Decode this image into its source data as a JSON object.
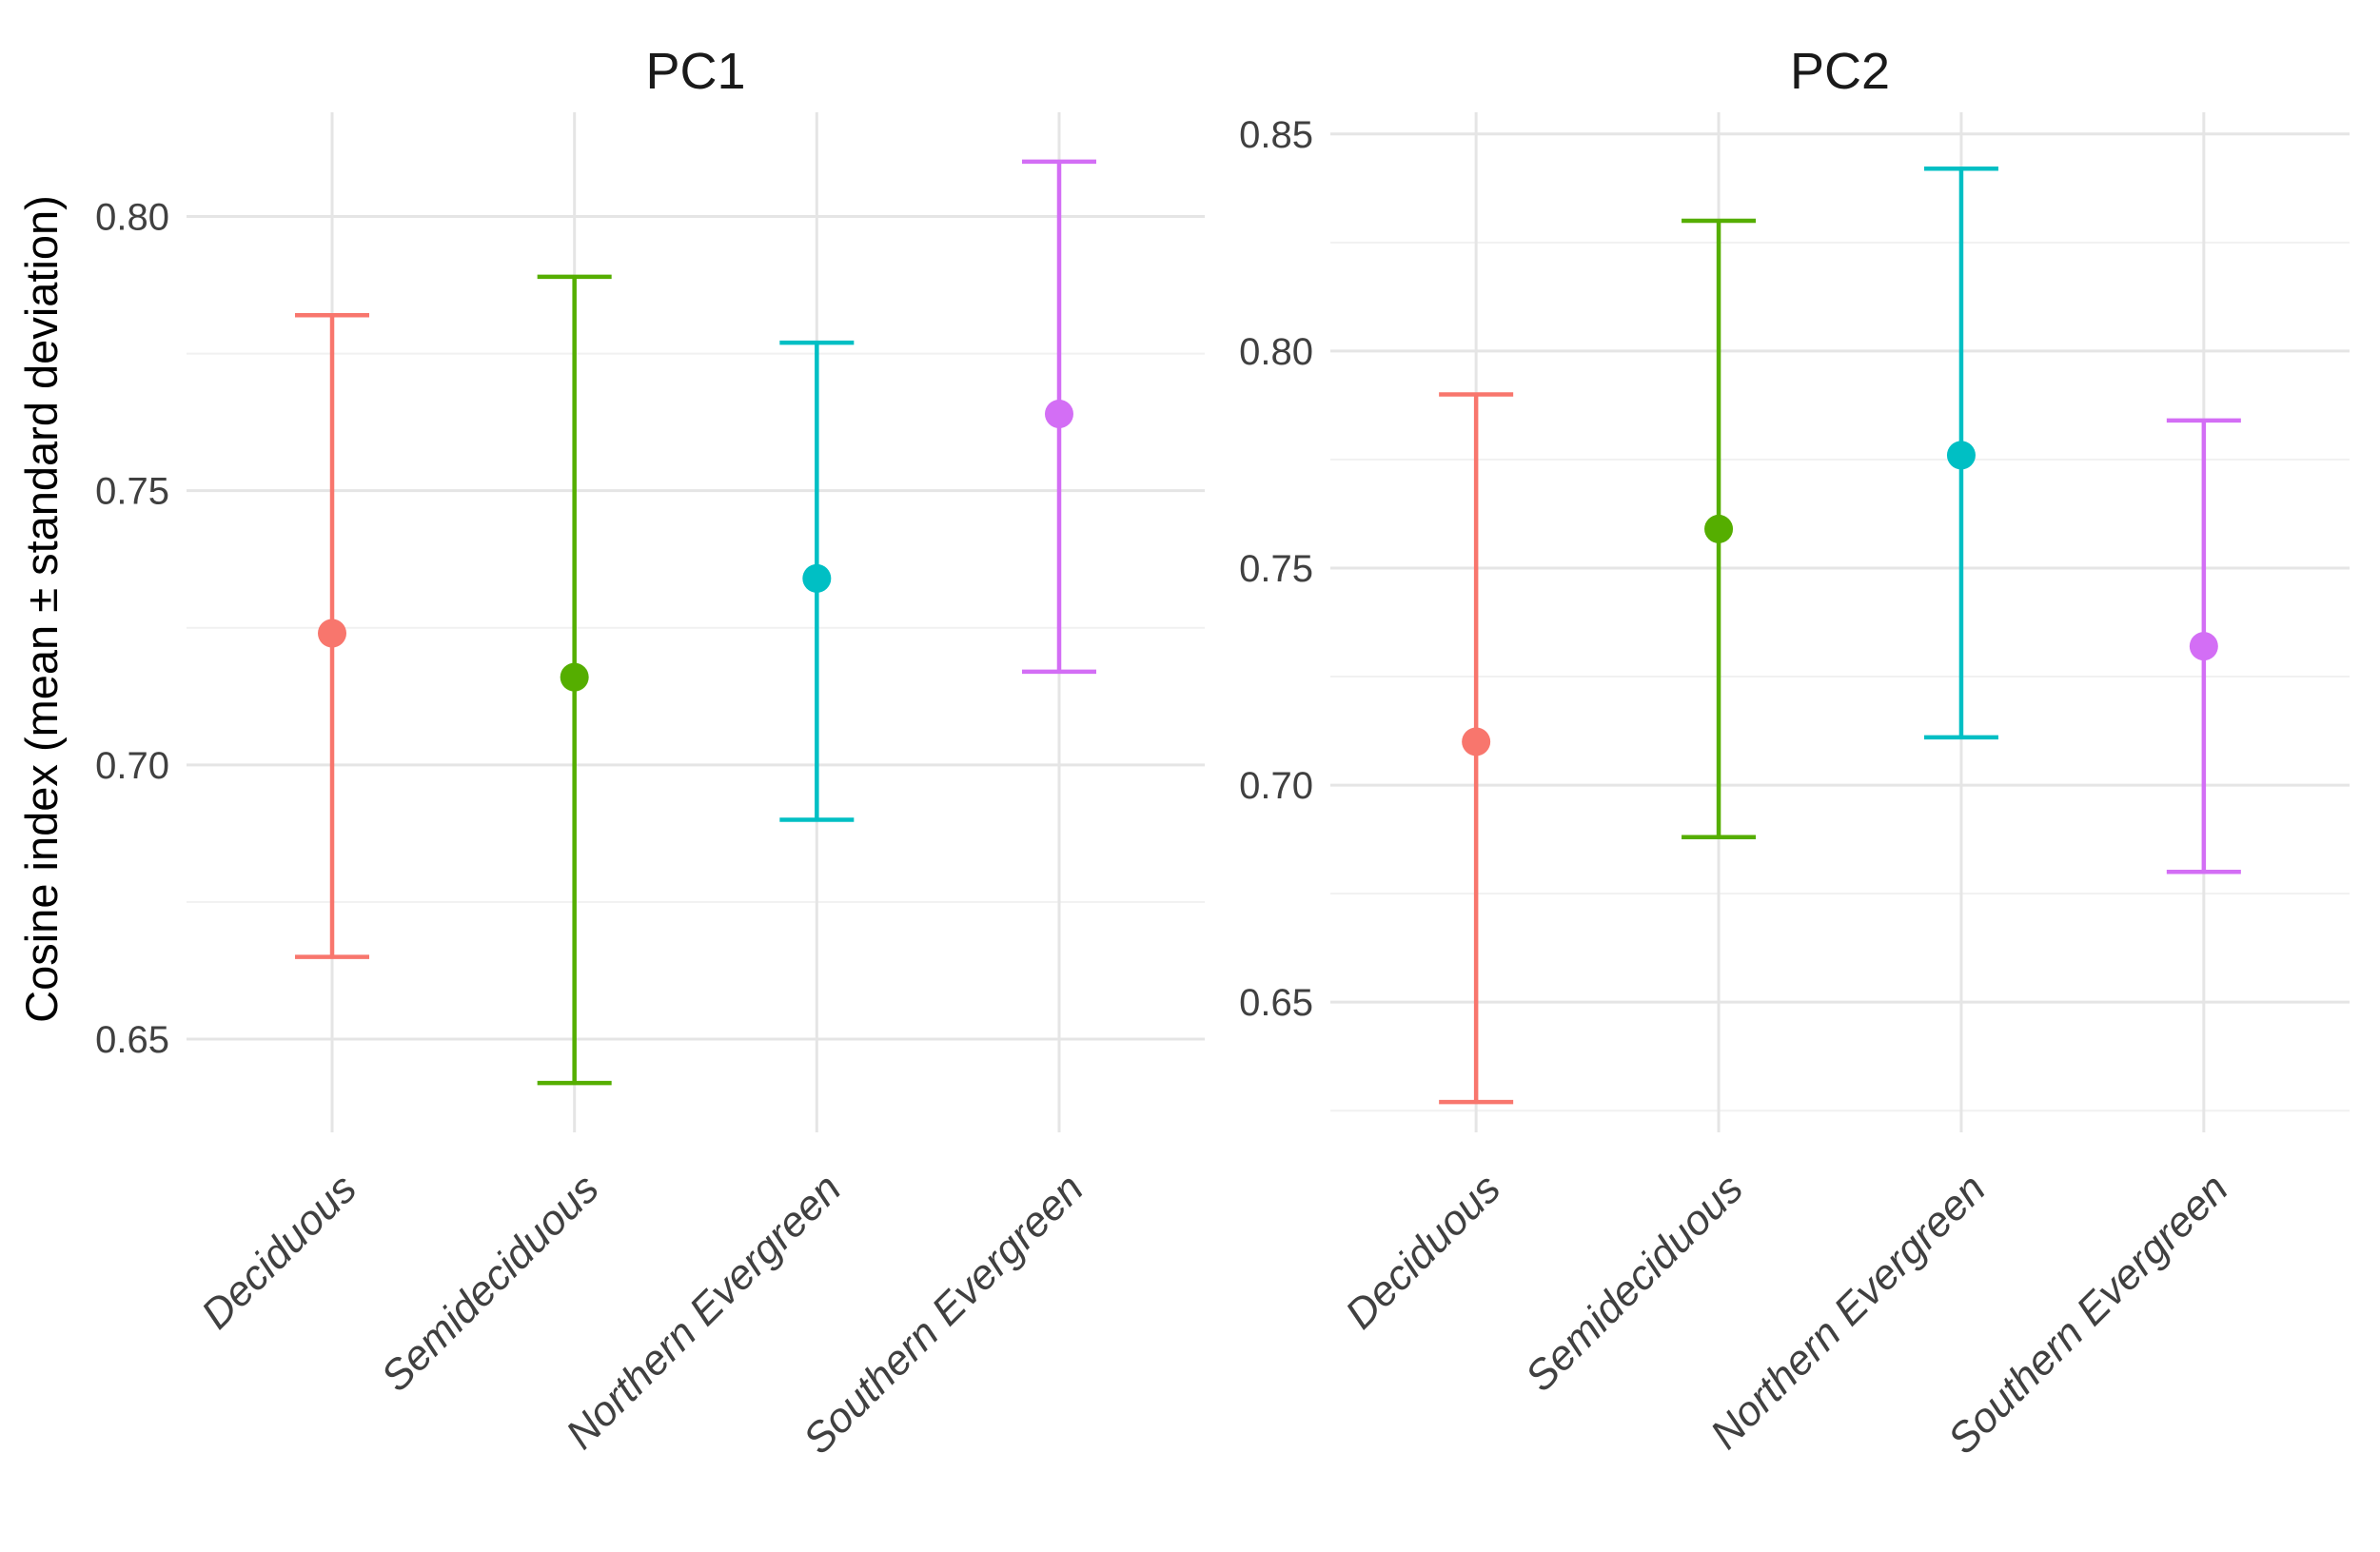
{
  "chart_data": {
    "type": "errorbar",
    "title": "",
    "ylabel": "Cosine index (mean ± standard deviation)",
    "xlabel": "",
    "legend_position": "none",
    "grid": true,
    "background": "#ffffff",
    "categories": [
      "Deciduous",
      "Semideciduous",
      "Northern Evergreen",
      "Southern Evergreen"
    ],
    "colors": [
      "#F8766D",
      "#55AE00",
      "#00BFC4",
      "#D36EF5"
    ],
    "grid_colors": {
      "major": "#E5E5E5",
      "minor": "#F1F1F1"
    },
    "text_colors": {
      "tick": "#404040",
      "category": "#404040",
      "facet_title": "#1a1a1a",
      "ylabel": "#000000"
    },
    "panels": [
      {
        "title": "PC1",
        "ylim": [
          0.633,
          0.819
        ],
        "major_ticks": [
          0.65,
          0.7,
          0.75,
          0.8
        ],
        "tick_labels": [
          "0.65",
          "0.70",
          "0.75",
          "0.80"
        ],
        "minor_ticks": [
          0.675,
          0.725,
          0.775
        ],
        "series": [
          {
            "category": "Deciduous",
            "mean": 0.724,
            "lower": 0.665,
            "upper": 0.782
          },
          {
            "category": "Semideciduous",
            "mean": 0.716,
            "lower": 0.642,
            "upper": 0.789
          },
          {
            "category": "Northern Evergreen",
            "mean": 0.734,
            "lower": 0.69,
            "upper": 0.777
          },
          {
            "category": "Southern Evergreen",
            "mean": 0.764,
            "lower": 0.717,
            "upper": 0.81
          }
        ]
      },
      {
        "title": "PC2",
        "ylim": [
          0.62,
          0.855
        ],
        "major_ticks": [
          0.65,
          0.7,
          0.75,
          0.8,
          0.85
        ],
        "tick_labels": [
          "0.65",
          "0.70",
          "0.75",
          "0.80",
          "0.85"
        ],
        "minor_ticks": [
          0.625,
          0.675,
          0.725,
          0.775,
          0.825
        ],
        "series": [
          {
            "category": "Deciduous",
            "mean": 0.71,
            "lower": 0.627,
            "upper": 0.79
          },
          {
            "category": "Semideciduous",
            "mean": 0.759,
            "lower": 0.688,
            "upper": 0.83
          },
          {
            "category": "Northern Evergreen",
            "mean": 0.776,
            "lower": 0.711,
            "upper": 0.842
          },
          {
            "category": "Southern Evergreen",
            "mean": 0.732,
            "lower": 0.68,
            "upper": 0.784
          }
        ]
      }
    ]
  }
}
